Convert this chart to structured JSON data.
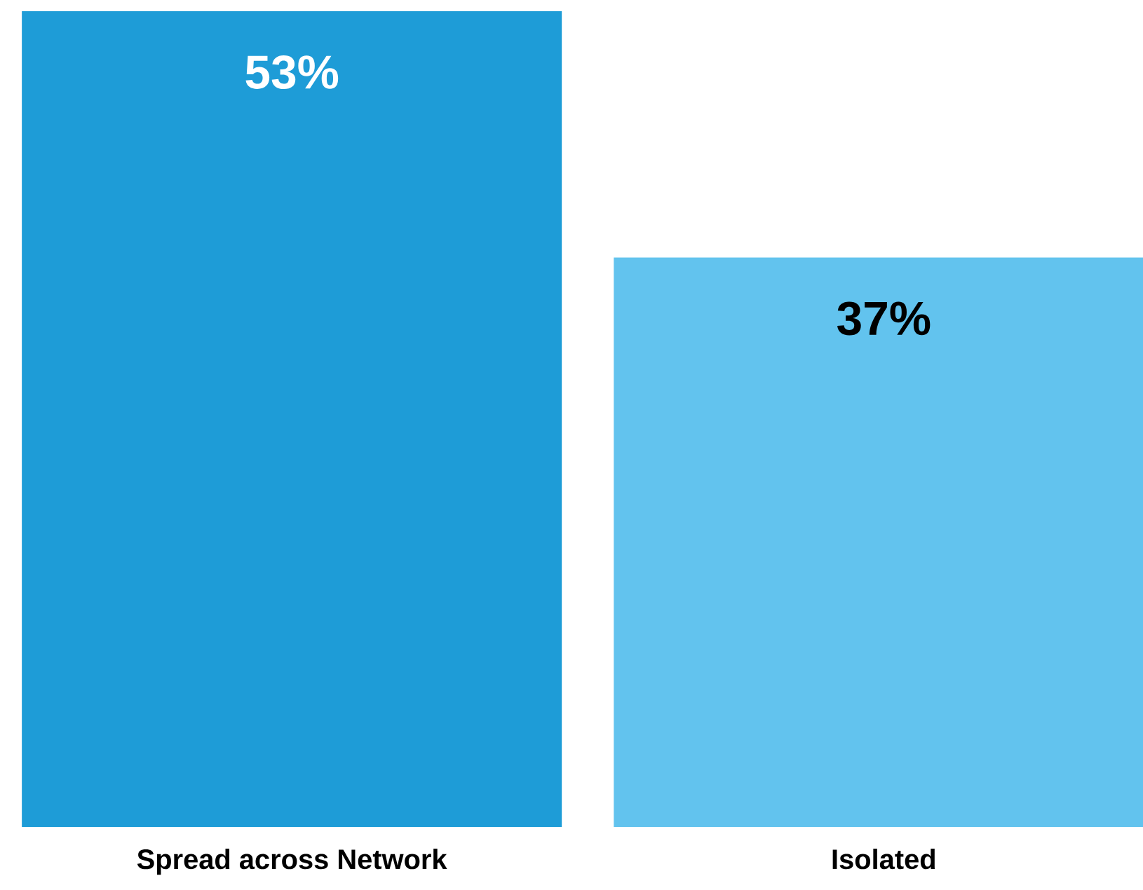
{
  "chart_data": {
    "type": "bar",
    "categories": [
      "Spread across Network",
      "Isolated"
    ],
    "values": [
      53,
      37
    ],
    "colors": [
      "#1e9cd7",
      "#62c3ee"
    ],
    "value_labels": [
      "53%",
      "37%"
    ]
  }
}
